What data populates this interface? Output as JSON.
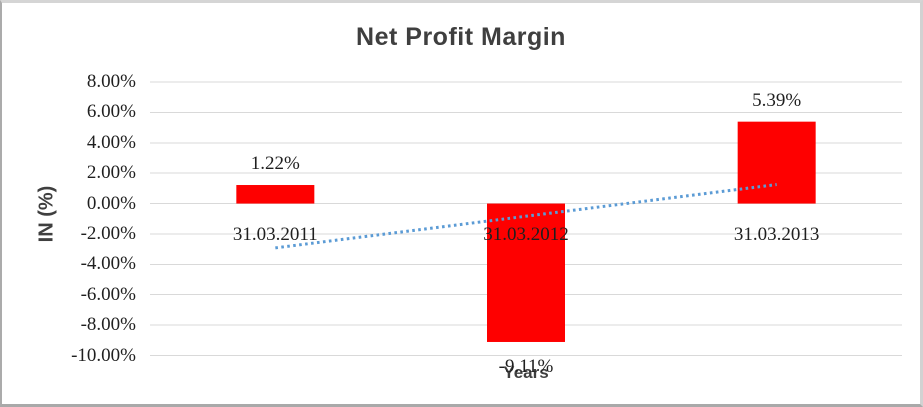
{
  "chart_data": {
    "type": "bar",
    "title": "Net Profit Margin",
    "xlabel": "Years",
    "ylabel": "IN (%)",
    "categories": [
      "31.03.2011",
      "31.03.2012",
      "31.03.2013"
    ],
    "values": [
      1.22,
      -9.11,
      5.39
    ],
    "data_labels": [
      "1.22%",
      "-9.11%",
      "5.39%"
    ],
    "ytick_values": [
      8,
      6,
      4,
      2,
      0,
      -2,
      -4,
      -6,
      -8,
      -10
    ],
    "ytick_labels": [
      "8.00%",
      "6.00%",
      "4.00%",
      "2.00%",
      "0.00%",
      "-2.00%",
      "-4.00%",
      "-6.00%",
      "-8.00%",
      "-10.00%"
    ],
    "ylim": [
      -10,
      8
    ],
    "grid": true,
    "legend": "none",
    "trendline": {
      "type": "linear",
      "style": "dotted"
    },
    "colors": {
      "bar": "#fe0000",
      "gridline": "#d9d9d9",
      "title": "#3f3f3f",
      "axis_title": "#3f3f3f",
      "label": "#1f1f1f",
      "trendline": "#5b9bd5"
    }
  }
}
